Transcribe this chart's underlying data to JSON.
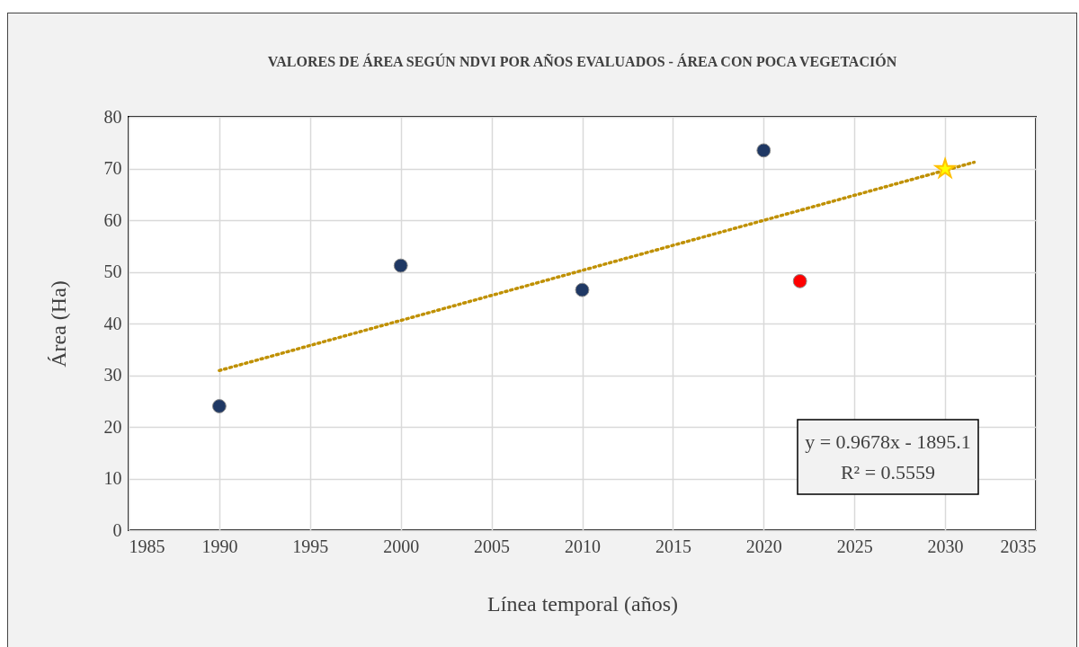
{
  "chart_data": {
    "type": "scatter",
    "title": "VALORES DE ÁREA SEGÚN NDVI POR AÑOS EVALUADOS - ÁREA CON POCA VEGETACIÓN",
    "xlabel": "Línea temporal (años)",
    "ylabel": "Área (Ha)",
    "xlim": [
      1985,
      2035
    ],
    "xticks": [
      1985,
      1990,
      1995,
      2000,
      2005,
      2010,
      2015,
      2020,
      2025,
      2030,
      2035
    ],
    "ylim": [
      0,
      80
    ],
    "yticks": [
      0,
      10,
      20,
      30,
      40,
      50,
      60,
      70,
      80
    ],
    "grid": true,
    "series": [
      {
        "type": "scatter",
        "color": "#1f3864",
        "marker": "circle",
        "x": [
          1990,
          2000,
          2010,
          2020
        ],
        "values": [
          24,
          51.2,
          46.5,
          73.5
        ]
      },
      {
        "type": "scatter",
        "color": "#ff0000",
        "marker": "circle",
        "x": [
          2022
        ],
        "values": [
          48.2
        ]
      },
      {
        "type": "line",
        "color": "#bf9000",
        "line_style": "dotted",
        "marker": "none",
        "x": [
          1990,
          2031.6
        ],
        "values": [
          30.9,
          71.2
        ]
      },
      {
        "type": "scatter",
        "color": "#ffff00",
        "marker": "star",
        "x": [
          2030
        ],
        "values": [
          69.9
        ]
      }
    ],
    "annotations": [
      "y = 0.9678x - 1895.1",
      "R² = 0.5559"
    ]
  }
}
